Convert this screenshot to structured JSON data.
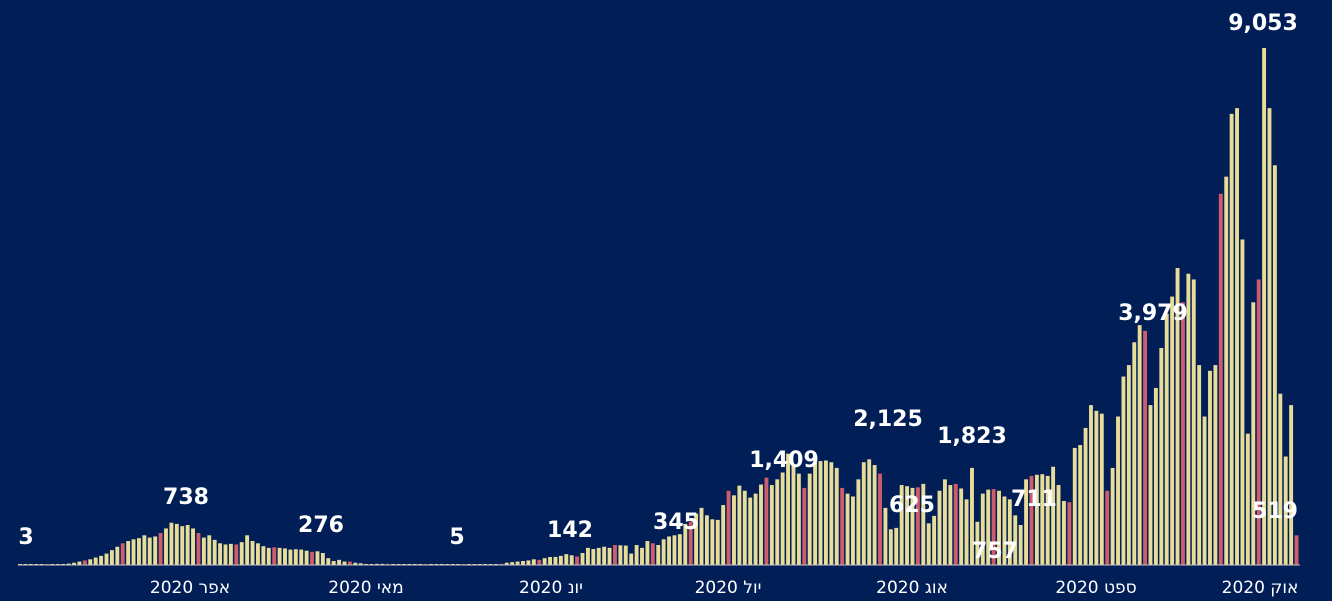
{
  "chart_data": {
    "type": "bar",
    "title": "",
    "xlabel": "",
    "ylabel": "",
    "ylim": [
      0,
      9500
    ],
    "grid": false,
    "legend": "none",
    "colors": {
      "background": "#011e57",
      "bar": "#e7dc98",
      "bar_alt": "#cd5c6c",
      "text": "#ffffff",
      "baseline": "#c8c8c8"
    },
    "x_ticks": [
      "אוק 2020",
      "ספט 2020",
      "אוג 2020",
      "יול 2020",
      "יונ 2020",
      "מאי 2020",
      "אפר 2020"
    ],
    "annotations": [
      {
        "text": "3",
        "value": 3
      },
      {
        "text": "738",
        "value": 738
      },
      {
        "text": "276",
        "value": 276
      },
      {
        "text": "5",
        "value": 5
      },
      {
        "text": "142",
        "value": 142
      },
      {
        "text": "345",
        "value": 345
      },
      {
        "text": "1,409",
        "value": 1409
      },
      {
        "text": "2,125",
        "value": 2125
      },
      {
        "text": "625",
        "value": 625
      },
      {
        "text": "1,823",
        "value": 1823
      },
      {
        "text": "757",
        "value": 757
      },
      {
        "text": "711",
        "value": 711
      },
      {
        "text": "3,979",
        "value": 3979
      },
      {
        "text": "9,053",
        "value": 9053
      },
      {
        "text": "519",
        "value": 519
      }
    ],
    "values": [
      3,
      4,
      5,
      6,
      8,
      10,
      12,
      15,
      18,
      25,
      40,
      60,
      80,
      100,
      130,
      160,
      200,
      260,
      320,
      380,
      420,
      450,
      470,
      520,
      480,
      500,
      560,
      640,
      740,
      720,
      680,
      700,
      640,
      560,
      480,
      520,
      440,
      380,
      360,
      370,
      360,
      400,
      520,
      420,
      380,
      330,
      300,
      310,
      300,
      290,
      270,
      276,
      270,
      250,
      230,
      240,
      210,
      120,
      70,
      90,
      60,
      60,
      40,
      30,
      15,
      15,
      20,
      20,
      20,
      10,
      5,
      5,
      10,
      15,
      15,
      10,
      5,
      6,
      5,
      4,
      5,
      6,
      5,
      4,
      5,
      5,
      8,
      10,
      12,
      20,
      40,
      50,
      60,
      70,
      80,
      100,
      90,
      120,
      140,
      142,
      160,
      190,
      170,
      150,
      210,
      300,
      280,
      300,
      320,
      300,
      350,
      345,
      340,
      200,
      350,
      300,
      420,
      380,
      350,
      450,
      500,
      520,
      540,
      720,
      760,
      900,
      1000,
      870,
      800,
      790,
      1050,
      1300,
      1220,
      1390,
      1300,
      1180,
      1250,
      1409,
      1530,
      1400,
      1500,
      1620,
      1950,
      1750,
      1600,
      1350,
      1600,
      1800,
      1820,
      1830,
      1800,
      1700,
      1350,
      1250,
      1200,
      1500,
      1800,
      1850,
      1750,
      1600,
      1000,
      625,
      650,
      1400,
      1380,
      1350,
      1360,
      1420,
      730,
      860,
      1300,
      1500,
      1400,
      1420,
      1340,
      1150,
      1700,
      757,
      1250,
      1320,
      1330,
      1300,
      1200,
      1150,
      870,
      700,
      1500,
      1560,
      1580,
      1590,
      1560,
      1720,
      1400,
      1120,
      1100,
      2050,
      2100,
      2400,
      2800,
      2700,
      2650,
      1300,
      1700,
      2600,
      3300,
      3500,
      3900,
      4200,
      4100,
      2800,
      3100,
      3800,
      4400,
      4700,
      5200,
      4600,
      5100,
      5000,
      3500,
      2600,
      3400,
      3500,
      6500,
      6800,
      7900,
      8000,
      5700,
      2300,
      4600,
      5000,
      9053,
      8000,
      7000,
      3000,
      1900,
      2800,
      519
    ]
  }
}
